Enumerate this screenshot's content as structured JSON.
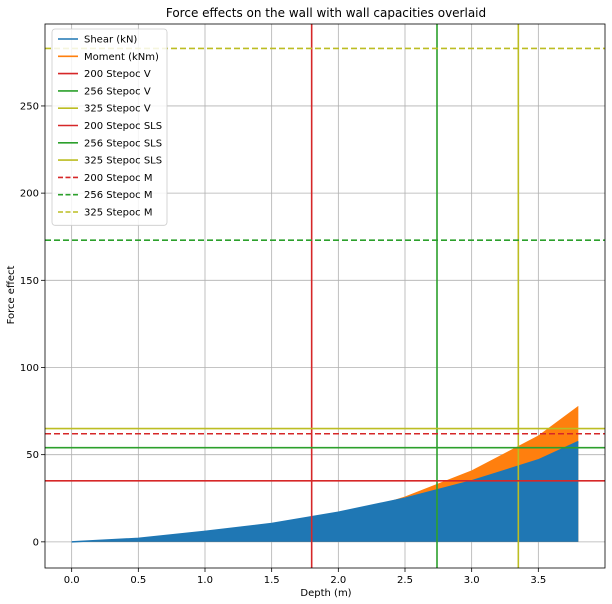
{
  "chart_data": {
    "type": "line",
    "title": "Force effects on the wall with wall capacities overlaid",
    "xlabel": "Depth (m)",
    "ylabel": "Force effect",
    "xlim": [
      -0.2,
      4.0
    ],
    "ylim": [
      -15,
      297
    ],
    "x_ticks": [
      "0.0",
      "0.5",
      "1.0",
      "1.5",
      "2.0",
      "2.5",
      "3.0",
      "3.5"
    ],
    "y_ticks": [
      "0",
      "50",
      "100",
      "150",
      "200",
      "250"
    ],
    "grid": true,
    "legend_position": "top-left",
    "series": [
      {
        "name": "Shear (kN)",
        "color": "#1f77b4",
        "x": [
          0,
          0.5,
          1.0,
          1.5,
          2.0,
          2.5,
          3.0,
          3.5,
          3.8
        ],
        "y": [
          0,
          2,
          6,
          10.5,
          17,
          25,
          35,
          47,
          57.5
        ],
        "fill": true
      },
      {
        "name": "Moment (kNm)",
        "color": "#ff7f0e",
        "x": [
          0,
          0.5,
          1.0,
          1.5,
          2.0,
          2.5,
          3.0,
          3.5,
          3.8
        ],
        "y": [
          0,
          0.5,
          3,
          7,
          14,
          26,
          41,
          61,
          78
        ],
        "fill": true
      }
    ],
    "vertical_lines": [
      {
        "name": "200 Stepoc V",
        "x": 1.8,
        "color": "#d62728",
        "style": "solid"
      },
      {
        "name": "256 Stepoc V",
        "x": 2.74,
        "color": "#2ca02c",
        "style": "solid"
      },
      {
        "name": "325 Stepoc V",
        "x": 3.35,
        "color": "#bcbd22",
        "style": "solid"
      }
    ],
    "horizontal_lines": [
      {
        "name": "200 Stepoc SLS",
        "y": 35,
        "color": "#d62728",
        "style": "solid"
      },
      {
        "name": "256 Stepoc SLS",
        "y": 54,
        "color": "#2ca02c",
        "style": "solid"
      },
      {
        "name": "325 Stepoc SLS",
        "y": 65,
        "color": "#bcbd22",
        "style": "solid"
      },
      {
        "name": "200 Stepoc M",
        "y": 62,
        "color": "#d62728",
        "style": "dashed"
      },
      {
        "name": "256 Stepoc M",
        "y": 173,
        "color": "#2ca02c",
        "style": "dashed"
      },
      {
        "name": "325 Stepoc M",
        "y": 283,
        "color": "#bcbd22",
        "style": "dashed"
      }
    ],
    "legend": [
      {
        "label": "Shear (kN)",
        "color": "#1f77b4",
        "style": "solid"
      },
      {
        "label": "Moment (kNm)",
        "color": "#ff7f0e",
        "style": "solid"
      },
      {
        "label": "200 Stepoc V",
        "color": "#d62728",
        "style": "solid"
      },
      {
        "label": "256 Stepoc V",
        "color": "#2ca02c",
        "style": "solid"
      },
      {
        "label": "325 Stepoc V",
        "color": "#bcbd22",
        "style": "solid"
      },
      {
        "label": "200 Stepoc SLS",
        "color": "#d62728",
        "style": "solid"
      },
      {
        "label": "256 Stepoc SLS",
        "color": "#2ca02c",
        "style": "solid"
      },
      {
        "label": "325 Stepoc SLS",
        "color": "#bcbd22",
        "style": "solid"
      },
      {
        "label": "200 Stepoc M",
        "color": "#d62728",
        "style": "dashed"
      },
      {
        "label": "256 Stepoc M",
        "color": "#2ca02c",
        "style": "dashed"
      },
      {
        "label": "325 Stepoc M",
        "color": "#bcbd22",
        "style": "dashed"
      }
    ]
  }
}
